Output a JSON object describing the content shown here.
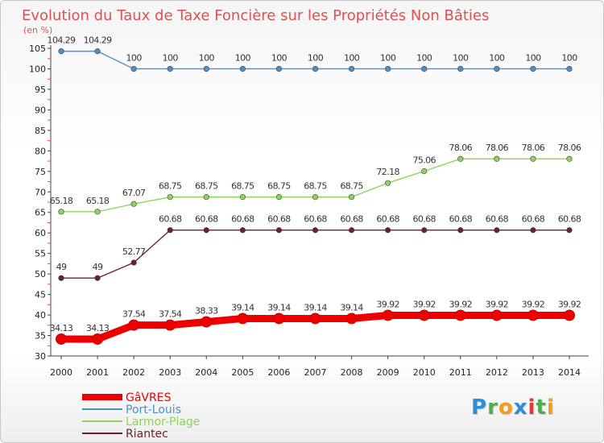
{
  "title": "Evolution du Taux de Taxe Foncière sur les Propriétés Non Bâties",
  "unit_label": "(en %)",
  "logo": {
    "text": "Proxiti",
    "letters": [
      {
        "ch": "P",
        "color": "#2a8fd6"
      },
      {
        "ch": "r",
        "color": "#4caf50"
      },
      {
        "ch": "o",
        "color": "#f29b1d"
      },
      {
        "ch": "x",
        "color": "#2a8fd6"
      },
      {
        "ch": "i",
        "color": "#e53935"
      },
      {
        "ch": "t",
        "color": "#4caf50"
      },
      {
        "ch": "i",
        "color": "#f29b1d"
      }
    ]
  },
  "chart_data": {
    "type": "line",
    "title": "Evolution du Taux de Taxe Foncière sur les Propriétés Non Bâties",
    "ylabel": "(en %)",
    "xlabel": "",
    "x": [
      "2000",
      "2001",
      "2002",
      "2003",
      "2004",
      "2005",
      "2006",
      "2007",
      "2008",
      "2009",
      "2010",
      "2011",
      "2012",
      "2013",
      "2014"
    ],
    "ylim": [
      30,
      105
    ],
    "yticks": [
      30,
      35,
      40,
      45,
      50,
      55,
      60,
      65,
      70,
      75,
      80,
      85,
      90,
      95,
      100,
      105
    ],
    "grid": false,
    "legend_position": "bottom-left",
    "series": [
      {
        "name": "GâVRES",
        "color": "#ee0000",
        "values": [
          34.13,
          34.13,
          37.54,
          37.54,
          38.33,
          39.14,
          39.14,
          39.14,
          39.14,
          39.92,
          39.92,
          39.92,
          39.92,
          39.92,
          39.92
        ],
        "labels": [
          "34.13",
          "34.13",
          "37.54",
          "37.54",
          "38.33",
          "39.14",
          "39.14",
          "39.14",
          "39.14",
          "39.92",
          "39.92",
          "39.92",
          "39.92",
          "39.92",
          "39.92"
        ]
      },
      {
        "name": "Port-Louis",
        "color": "#4d90c9",
        "values": [
          104.29,
          104.29,
          100,
          100,
          100,
          100,
          100,
          100,
          100,
          100,
          100,
          100,
          100,
          100,
          100
        ],
        "labels": [
          "104.29",
          "104.29",
          "100",
          "100",
          "100",
          "100",
          "100",
          "100",
          "100",
          "100",
          "100",
          "100",
          "100",
          "100",
          "100"
        ]
      },
      {
        "name": "Larmor-Plage",
        "color": "#8ed35a",
        "values": [
          65.18,
          65.18,
          67.07,
          68.75,
          68.75,
          68.75,
          68.75,
          68.75,
          68.75,
          72.18,
          75.06,
          78.06,
          78.06,
          78.06,
          78.06
        ],
        "labels": [
          "65.18",
          "65.18",
          "67.07",
          "68.75",
          "68.75",
          "68.75",
          "68.75",
          "68.75",
          "68.75",
          "72.18",
          "75.06",
          "78.06",
          "78.06",
          "78.06",
          "78.06"
        ]
      },
      {
        "name": "Riantec",
        "color": "#6b2228",
        "values": [
          49,
          49,
          52.77,
          60.68,
          60.68,
          60.68,
          60.68,
          60.68,
          60.68,
          60.68,
          60.68,
          60.68,
          60.68,
          60.68,
          60.68
        ],
        "labels": [
          "49",
          "49",
          "52.77",
          "60.68",
          "60.68",
          "60.68",
          "60.68",
          "60.68",
          "60.68",
          "60.68",
          "60.68",
          "60.68",
          "60.68",
          "60.68",
          "60.68"
        ]
      }
    ]
  }
}
